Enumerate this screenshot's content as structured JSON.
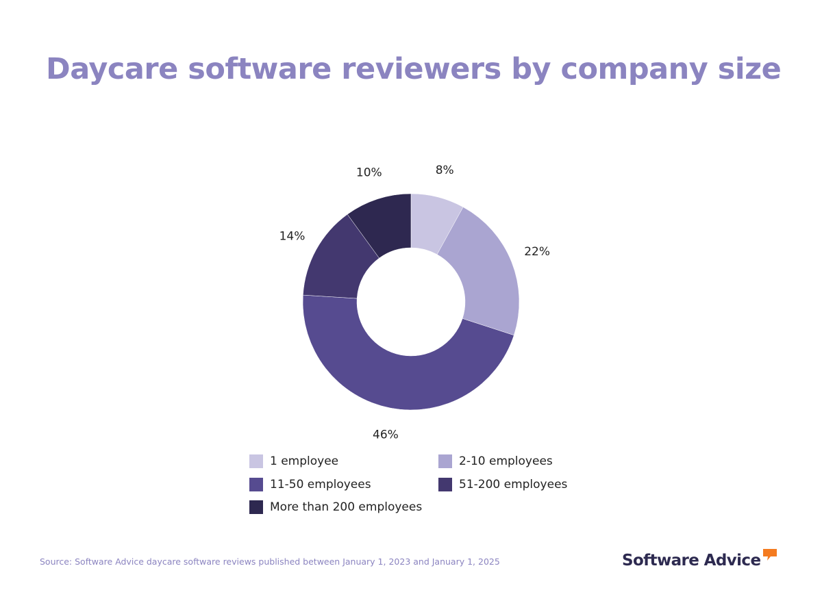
{
  "chart_data": {
    "type": "pie",
    "variant": "donut",
    "title": "Daycare software reviewers by company size",
    "categories": [
      "1 employee",
      "2-10 employees",
      "11-50 employees",
      "51-200 employees",
      "More than 200 employees"
    ],
    "values": [
      8,
      22,
      46,
      14,
      10
    ],
    "value_labels": [
      "8%",
      "22%",
      "46%",
      "14%",
      "10%"
    ],
    "colors": [
      "#c9c5e2",
      "#aaa5d1",
      "#564b90",
      "#43386f",
      "#2e2850"
    ],
    "legend_position": "bottom"
  },
  "source": "Source: Software Advice daycare software reviews published between January 1, 2023 and January 1, 2025",
  "brand": {
    "name": "Software Advice",
    "accent_color": "#f47b20"
  }
}
